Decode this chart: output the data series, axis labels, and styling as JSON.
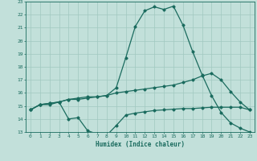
{
  "title": "",
  "xlabel": "Humidex (Indice chaleur)",
  "bg_color": "#c2e0da",
  "line_color": "#1a6b5e",
  "grid_color": "#a0c8c0",
  "xlim": [
    -0.5,
    23.5
  ],
  "ylim": [
    13,
    23
  ],
  "xticks": [
    0,
    1,
    2,
    3,
    4,
    5,
    6,
    7,
    8,
    9,
    10,
    11,
    12,
    13,
    14,
    15,
    16,
    17,
    18,
    19,
    20,
    21,
    22,
    23
  ],
  "yticks": [
    13,
    14,
    15,
    16,
    17,
    18,
    19,
    20,
    21,
    22,
    23
  ],
  "series": [
    [
      14.7,
      15.1,
      15.1,
      15.3,
      15.5,
      15.5,
      15.6,
      15.7,
      15.8,
      16.0,
      16.1,
      16.2,
      16.3,
      16.4,
      16.5,
      16.6,
      16.8,
      17.0,
      17.3,
      17.5,
      17.0,
      16.1,
      15.3,
      14.7
    ],
    [
      14.7,
      15.1,
      15.2,
      15.3,
      14.0,
      14.1,
      13.1,
      12.85,
      12.75,
      13.5,
      14.3,
      14.45,
      14.55,
      14.65,
      14.7,
      14.75,
      14.8,
      14.8,
      14.85,
      14.9,
      14.9,
      14.9,
      14.9,
      14.7
    ],
    [
      14.7,
      15.1,
      15.2,
      15.3,
      15.5,
      15.6,
      15.7,
      15.7,
      15.8,
      16.4,
      18.7,
      21.1,
      22.3,
      22.6,
      22.4,
      22.65,
      21.2,
      19.2,
      17.4,
      15.8,
      14.5,
      13.7,
      13.3,
      13.0
    ]
  ]
}
